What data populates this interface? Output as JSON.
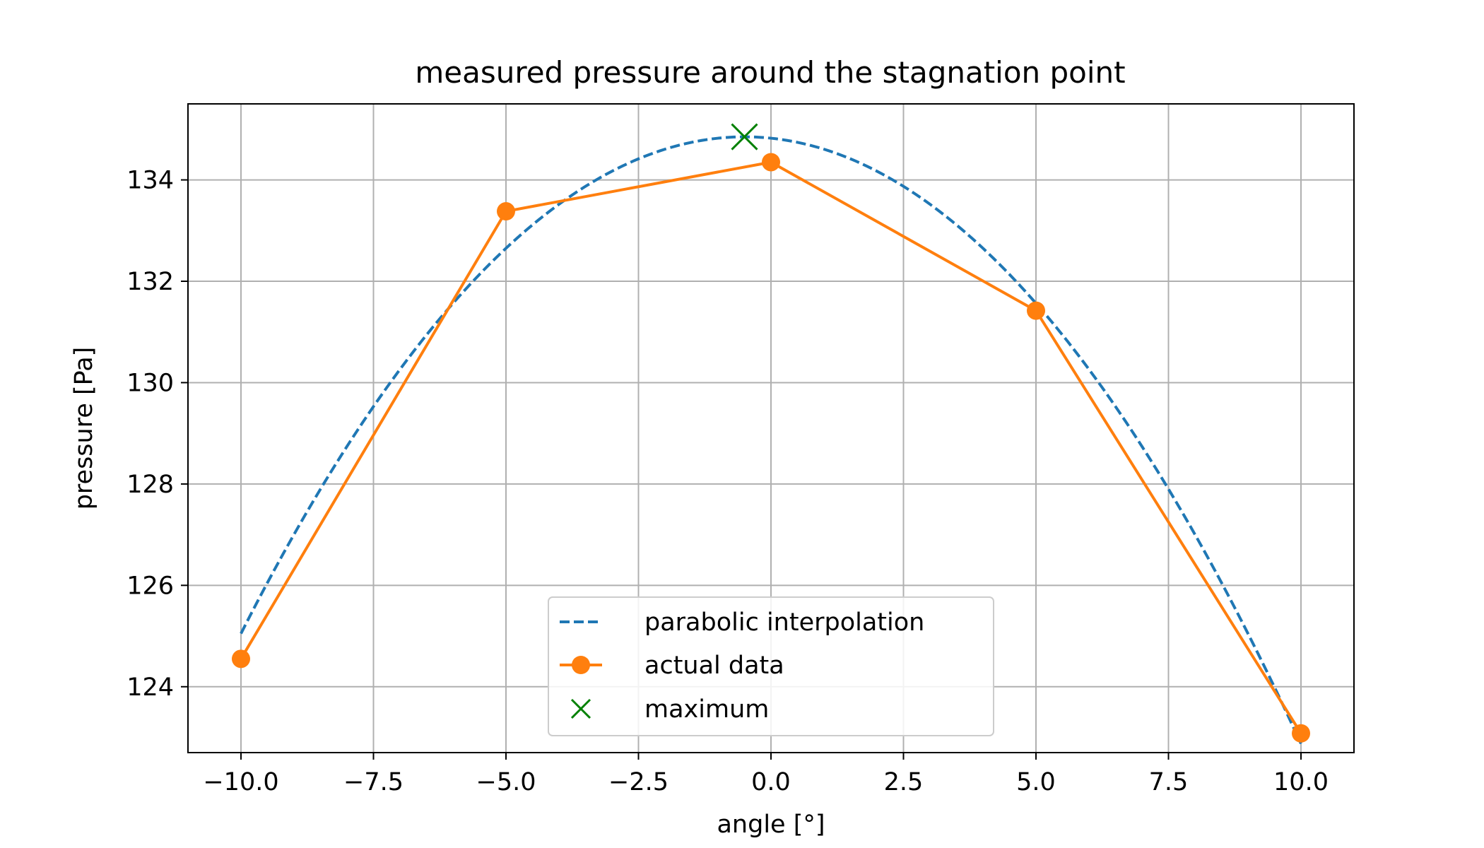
{
  "chart_data": {
    "type": "line",
    "title": "measured pressure around the stagnation point",
    "xlabel": "angle [°]",
    "ylabel": "pressure [Pa]",
    "xlim": [
      -11,
      11
    ],
    "ylim": [
      122.7,
      135.5
    ],
    "xticks": [
      -10.0,
      -7.5,
      -5.0,
      -2.5,
      0.0,
      2.5,
      5.0,
      7.5,
      10.0
    ],
    "xtick_labels": [
      "−10.0",
      "−7.5",
      "−5.0",
      "−2.5",
      "0.0",
      "2.5",
      "5.0",
      "7.5",
      "10.0"
    ],
    "yticks": [
      124,
      126,
      128,
      130,
      132,
      134
    ],
    "ytick_labels": [
      "124",
      "126",
      "128",
      "130",
      "132",
      "134"
    ],
    "grid": true,
    "legend_position": "bottom-center",
    "series": [
      {
        "name": "parabolic interpolation",
        "style": "dashed",
        "color": "#1f77b4",
        "parabola": {
          "vertex_x": -0.5,
          "vertex_y": 134.85,
          "a": -0.1086
        },
        "x_range": [
          -10,
          10
        ]
      },
      {
        "name": "actual data",
        "style": "solid-marker",
        "color": "#ff7f0e",
        "x": [
          -10,
          -5,
          0,
          5,
          10
        ],
        "y": [
          124.55,
          133.38,
          134.35,
          131.42,
          123.08
        ]
      },
      {
        "name": "maximum",
        "style": "x-marker",
        "color": "#008000",
        "x": [
          -0.5
        ],
        "y": [
          134.85
        ]
      }
    ]
  }
}
